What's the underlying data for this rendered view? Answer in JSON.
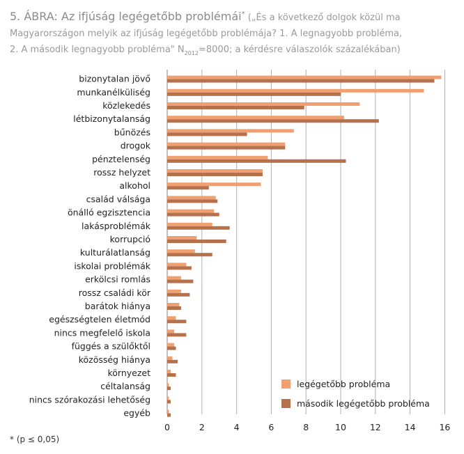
{
  "title": {
    "main": "5. ÁBRA: Az ifjúság legégetőbb problémái",
    "star": "*",
    "sub_line1": " („És a következő dolgok közül ma",
    "sub_line2": "Magyarországon melyik az ifjúság legégetőbb problémája? 1. A legnagyobb probléma,",
    "sub_line3_a": "2. A második legnagyobb probléma\" N",
    "sub_line3_sub": "2012",
    "sub_line3_b": "=8000; a kérdésre válaszolók százalékában)"
  },
  "footnote": "* (p ≤ 0,05)",
  "colors": {
    "first": "#f0a070",
    "second": "#b5714c",
    "grid": "#b0b0b0"
  },
  "chart_data": {
    "type": "bar",
    "orientation": "horizontal",
    "xlim": [
      0,
      16
    ],
    "x_ticks": [
      0,
      2,
      4,
      6,
      8,
      10,
      12,
      14,
      16
    ],
    "grid": "vertical",
    "legend_position": "bottom-right",
    "categories": [
      "bizonytalan jövő",
      "munkanélküliség",
      "közlekedés",
      "létbizonytalanság",
      "bűnözés",
      "drogok",
      "pénztelenség",
      "rossz helyzet",
      "alkohol",
      "család válsága",
      "önálló egzisztencia",
      "lakásproblémák",
      "korrupció",
      "kulturálatlanság",
      "iskolai problémák",
      "erkölcsi romlás",
      "rossz családi kör",
      "barátok hiánya",
      "egészségtelen életmód",
      "nincs megfelelő iskola",
      "függés a szülőktől",
      "közösség hiánya",
      "környezet",
      "céltalanság",
      "nincs szórakozási lehetőség",
      "egyéb"
    ],
    "series": [
      {
        "name": "legégetőbb probléma",
        "values": [
          15.8,
          14.8,
          11.1,
          10.2,
          7.3,
          6.8,
          5.8,
          5.5,
          5.4,
          2.8,
          2.7,
          2.6,
          1.7,
          1.6,
          1.1,
          0.8,
          0.8,
          0.7,
          0.5,
          0.4,
          0.4,
          0.3,
          0.2,
          0.1,
          0.1,
          0.1
        ]
      },
      {
        "name": "második legégetőbb probléma",
        "values": [
          15.4,
          10.0,
          7.9,
          12.2,
          4.6,
          6.8,
          10.3,
          5.5,
          2.4,
          2.9,
          3.0,
          3.6,
          3.4,
          2.6,
          1.4,
          1.5,
          1.3,
          0.8,
          1.1,
          1.1,
          0.5,
          0.6,
          0.5,
          0.2,
          0.2,
          0.2
        ]
      }
    ]
  }
}
